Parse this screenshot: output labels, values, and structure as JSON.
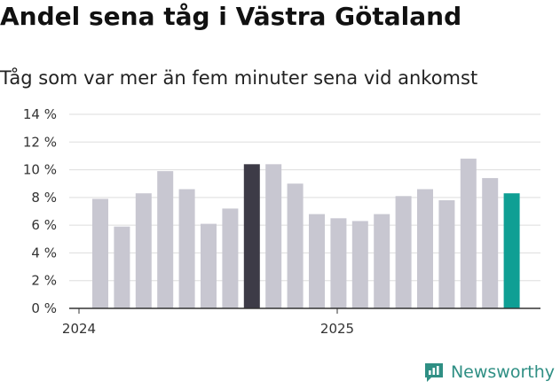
{
  "header": {
    "title": "Andel sena tåg i Västra Götaland",
    "subtitle": "Tåg som var mer än fem minuter sena vid ankomst"
  },
  "brand": {
    "name": "Newsworthy",
    "icon": "newsworthy-logo-icon"
  },
  "colors": {
    "default_bar": "#c8c7d1",
    "highlight_dark": "#3d3b47",
    "highlight_teal": "#0f9f94",
    "grid": "#dddddd",
    "axis": "#333333",
    "brand": "#2f8f84"
  },
  "chart_data": {
    "type": "bar",
    "title": "Andel sena tåg i Västra Götaland",
    "subtitle": "Tåg som var mer än fem minuter sena vid ankomst",
    "xlabel": "",
    "ylabel": "",
    "ylim": [
      0,
      14
    ],
    "yticks": [
      0,
      2,
      4,
      6,
      8,
      10,
      12,
      14
    ],
    "ytick_labels": [
      "0 %",
      "2 %",
      "4 %",
      "6 %",
      "8 %",
      "10 %",
      "12 %",
      "14 %"
    ],
    "xtick_labels": [
      {
        "label": "2024",
        "index": 0
      },
      {
        "label": "2025",
        "index": 12
      }
    ],
    "values": [
      7.9,
      5.9,
      8.3,
      9.9,
      8.6,
      6.1,
      7.2,
      10.4,
      10.4,
      9.0,
      6.8,
      6.5,
      6.3,
      6.8,
      8.1,
      8.6,
      7.8,
      10.8,
      9.4,
      8.3
    ],
    "highlights": [
      {
        "index": 7,
        "color": "#3d3b47"
      },
      {
        "index": 19,
        "color": "#0f9f94"
      }
    ],
    "grid": true,
    "legend": "none"
  }
}
